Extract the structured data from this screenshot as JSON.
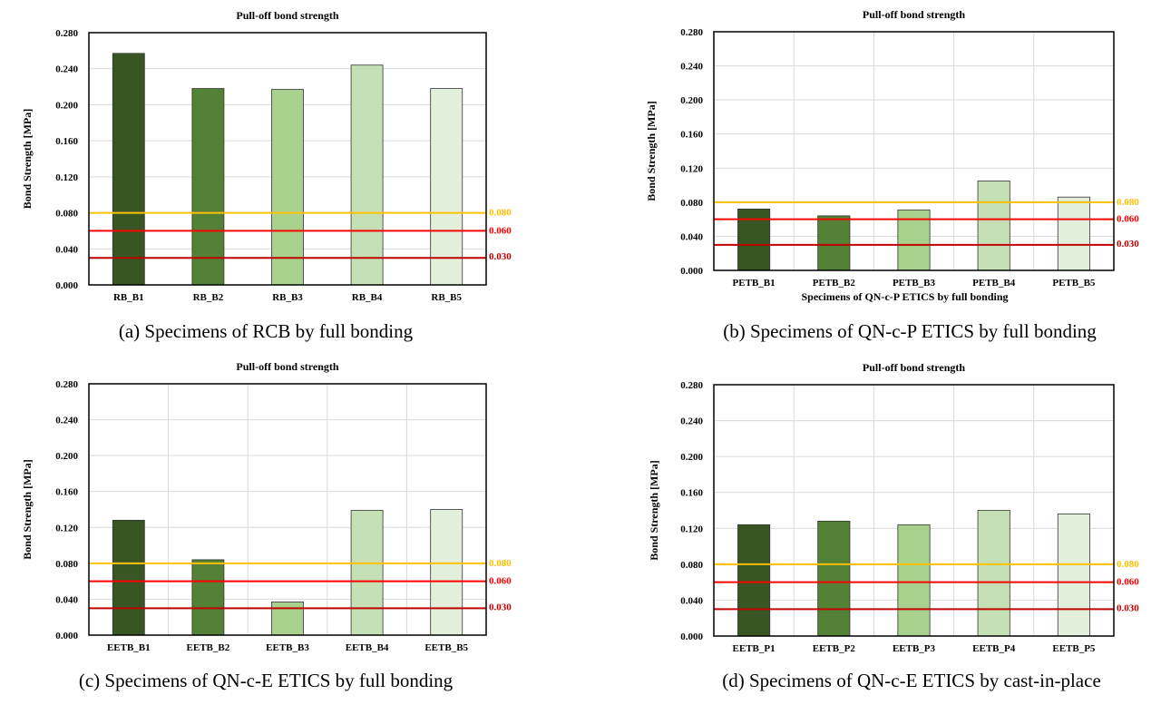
{
  "figure": {
    "captions": [
      "(a) Specimens of RCB by full bonding",
      "(b) Specimens of QN-c-P ETICS by full bonding",
      "(c) Specimens of QN-c-E ETICS by full bonding",
      "(d) Specimens of QN-c-E ETICS by cast-in-place"
    ]
  },
  "colors": {
    "bars": [
      "#375623",
      "#538135",
      "#a9d18e",
      "#c5e0b4",
      "#e2efda"
    ],
    "line_080": "#ffc000",
    "line_060": "#ff0000",
    "line_030": "#c00000",
    "bar_border": "#333333"
  },
  "chart_data": [
    {
      "type": "bar",
      "title": "Pull-off bond strength",
      "ylabel": "Bond Strength [MPa]",
      "xlabel": "",
      "ylim": [
        0,
        0.28
      ],
      "yticks": [
        "0.000",
        "0.040",
        "0.080",
        "0.120",
        "0.160",
        "0.200",
        "0.240",
        "0.280"
      ],
      "categories": [
        "RB_B1",
        "RB_B2",
        "RB_B3",
        "RB_B4",
        "RB_B5"
      ],
      "values": [
        0.257,
        0.218,
        0.217,
        0.244,
        0.218
      ],
      "reference_lines": [
        {
          "value": 0.08,
          "label": "0.080",
          "color": "#ffc000"
        },
        {
          "value": 0.06,
          "label": "0.060",
          "color": "#ff0000"
        },
        {
          "value": 0.03,
          "label": "0.030",
          "color": "#c00000"
        }
      ],
      "vertical_gridlines": false
    },
    {
      "type": "bar",
      "title": "Pull-off bond strength",
      "ylabel": "Bond Strength [MPa]",
      "xlabel": "Specimens of QN-c-P ETICS by full bonding",
      "ylim": [
        0,
        0.28
      ],
      "yticks": [
        "0.000",
        "0.040",
        "0.080",
        "0.120",
        "0.160",
        "0.200",
        "0.240",
        "0.280"
      ],
      "categories": [
        "PETB_B1",
        "PETB_B2",
        "PETB_B3",
        "PETB_B4",
        "PETB_B5"
      ],
      "values": [
        0.072,
        0.064,
        0.071,
        0.105,
        0.086
      ],
      "reference_lines": [
        {
          "value": 0.08,
          "label": "0.080",
          "color": "#ffc000"
        },
        {
          "value": 0.06,
          "label": "0.060",
          "color": "#ff0000"
        },
        {
          "value": 0.03,
          "label": "0.030",
          "color": "#c00000"
        }
      ],
      "vertical_gridlines": true
    },
    {
      "type": "bar",
      "title": "Pull-off bond strength",
      "ylabel": "Bond Strength [MPa]",
      "xlabel": "",
      "ylim": [
        0,
        0.28
      ],
      "yticks": [
        "0.000",
        "0.040",
        "0.080",
        "0.120",
        "0.160",
        "0.200",
        "0.240",
        "0.280"
      ],
      "categories": [
        "EETB_B1",
        "EETB_B2",
        "EETB_B3",
        "EETB_B4",
        "EETB_B5"
      ],
      "values": [
        0.128,
        0.084,
        0.037,
        0.139,
        0.14
      ],
      "reference_lines": [
        {
          "value": 0.08,
          "label": "0.080",
          "color": "#ffc000"
        },
        {
          "value": 0.06,
          "label": "0.060",
          "color": "#ff0000"
        },
        {
          "value": 0.03,
          "label": "0.030",
          "color": "#c00000"
        }
      ],
      "vertical_gridlines": true
    },
    {
      "type": "bar",
      "title": "Pull-off bond strength",
      "ylabel": "Bond Strength [MPa]",
      "xlabel": "",
      "ylim": [
        0,
        0.28
      ],
      "yticks": [
        "0.000",
        "0.040",
        "0.080",
        "0.120",
        "0.160",
        "0.200",
        "0.240",
        "0.280"
      ],
      "categories": [
        "EETB_P1",
        "EETB_P2",
        "EETB_P3",
        "EETB_P4",
        "EETB_P5"
      ],
      "values": [
        0.124,
        0.128,
        0.124,
        0.14,
        0.136
      ],
      "reference_lines": [
        {
          "value": 0.08,
          "label": "0.080",
          "color": "#ffc000"
        },
        {
          "value": 0.06,
          "label": "0.060",
          "color": "#ff0000"
        },
        {
          "value": 0.03,
          "label": "0.030",
          "color": "#c00000"
        }
      ],
      "vertical_gridlines": true
    }
  ]
}
